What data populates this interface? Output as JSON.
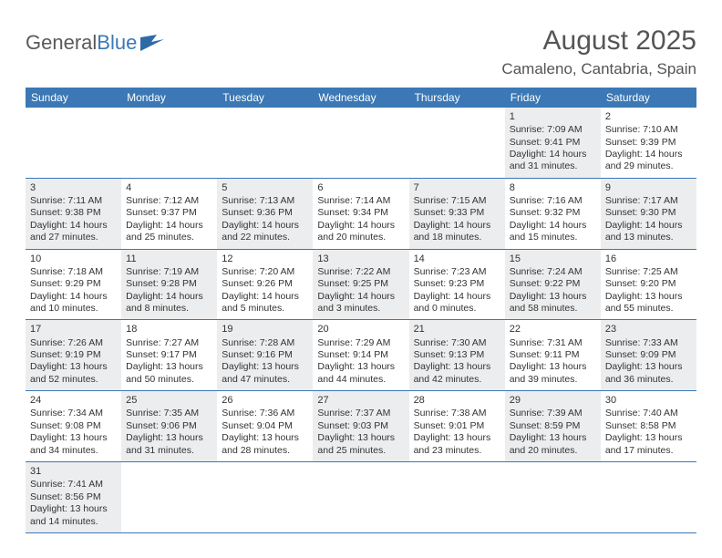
{
  "logo": {
    "text1": "General",
    "text2": "Blue"
  },
  "header": {
    "month_title": "August 2025",
    "location": "Camaleno, Cantabria, Spain"
  },
  "colors": {
    "header_bg": "#3b78b5",
    "shade_bg": "#ecedee",
    "text": "#333333"
  },
  "day_names": [
    "Sunday",
    "Monday",
    "Tuesday",
    "Wednesday",
    "Thursday",
    "Friday",
    "Saturday"
  ],
  "weeks": [
    [
      {
        "empty": true
      },
      {
        "empty": true
      },
      {
        "empty": true
      },
      {
        "empty": true
      },
      {
        "empty": true
      },
      {
        "day": "1",
        "shade": true,
        "sunrise": "Sunrise: 7:09 AM",
        "sunset": "Sunset: 9:41 PM",
        "daylight": "Daylight: 14 hours and 31 minutes."
      },
      {
        "day": "2",
        "sunrise": "Sunrise: 7:10 AM",
        "sunset": "Sunset: 9:39 PM",
        "daylight": "Daylight: 14 hours and 29 minutes."
      }
    ],
    [
      {
        "day": "3",
        "shade": true,
        "sunrise": "Sunrise: 7:11 AM",
        "sunset": "Sunset: 9:38 PM",
        "daylight": "Daylight: 14 hours and 27 minutes."
      },
      {
        "day": "4",
        "sunrise": "Sunrise: 7:12 AM",
        "sunset": "Sunset: 9:37 PM",
        "daylight": "Daylight: 14 hours and 25 minutes."
      },
      {
        "day": "5",
        "shade": true,
        "sunrise": "Sunrise: 7:13 AM",
        "sunset": "Sunset: 9:36 PM",
        "daylight": "Daylight: 14 hours and 22 minutes."
      },
      {
        "day": "6",
        "sunrise": "Sunrise: 7:14 AM",
        "sunset": "Sunset: 9:34 PM",
        "daylight": "Daylight: 14 hours and 20 minutes."
      },
      {
        "day": "7",
        "shade": true,
        "sunrise": "Sunrise: 7:15 AM",
        "sunset": "Sunset: 9:33 PM",
        "daylight": "Daylight: 14 hours and 18 minutes."
      },
      {
        "day": "8",
        "sunrise": "Sunrise: 7:16 AM",
        "sunset": "Sunset: 9:32 PM",
        "daylight": "Daylight: 14 hours and 15 minutes."
      },
      {
        "day": "9",
        "shade": true,
        "sunrise": "Sunrise: 7:17 AM",
        "sunset": "Sunset: 9:30 PM",
        "daylight": "Daylight: 14 hours and 13 minutes."
      }
    ],
    [
      {
        "day": "10",
        "sunrise": "Sunrise: 7:18 AM",
        "sunset": "Sunset: 9:29 PM",
        "daylight": "Daylight: 14 hours and 10 minutes."
      },
      {
        "day": "11",
        "shade": true,
        "sunrise": "Sunrise: 7:19 AM",
        "sunset": "Sunset: 9:28 PM",
        "daylight": "Daylight: 14 hours and 8 minutes."
      },
      {
        "day": "12",
        "sunrise": "Sunrise: 7:20 AM",
        "sunset": "Sunset: 9:26 PM",
        "daylight": "Daylight: 14 hours and 5 minutes."
      },
      {
        "day": "13",
        "shade": true,
        "sunrise": "Sunrise: 7:22 AM",
        "sunset": "Sunset: 9:25 PM",
        "daylight": "Daylight: 14 hours and 3 minutes."
      },
      {
        "day": "14",
        "sunrise": "Sunrise: 7:23 AM",
        "sunset": "Sunset: 9:23 PM",
        "daylight": "Daylight: 14 hours and 0 minutes."
      },
      {
        "day": "15",
        "shade": true,
        "sunrise": "Sunrise: 7:24 AM",
        "sunset": "Sunset: 9:22 PM",
        "daylight": "Daylight: 13 hours and 58 minutes."
      },
      {
        "day": "16",
        "sunrise": "Sunrise: 7:25 AM",
        "sunset": "Sunset: 9:20 PM",
        "daylight": "Daylight: 13 hours and 55 minutes."
      }
    ],
    [
      {
        "day": "17",
        "shade": true,
        "sunrise": "Sunrise: 7:26 AM",
        "sunset": "Sunset: 9:19 PM",
        "daylight": "Daylight: 13 hours and 52 minutes."
      },
      {
        "day": "18",
        "sunrise": "Sunrise: 7:27 AM",
        "sunset": "Sunset: 9:17 PM",
        "daylight": "Daylight: 13 hours and 50 minutes."
      },
      {
        "day": "19",
        "shade": true,
        "sunrise": "Sunrise: 7:28 AM",
        "sunset": "Sunset: 9:16 PM",
        "daylight": "Daylight: 13 hours and 47 minutes."
      },
      {
        "day": "20",
        "sunrise": "Sunrise: 7:29 AM",
        "sunset": "Sunset: 9:14 PM",
        "daylight": "Daylight: 13 hours and 44 minutes."
      },
      {
        "day": "21",
        "shade": true,
        "sunrise": "Sunrise: 7:30 AM",
        "sunset": "Sunset: 9:13 PM",
        "daylight": "Daylight: 13 hours and 42 minutes."
      },
      {
        "day": "22",
        "sunrise": "Sunrise: 7:31 AM",
        "sunset": "Sunset: 9:11 PM",
        "daylight": "Daylight: 13 hours and 39 minutes."
      },
      {
        "day": "23",
        "shade": true,
        "sunrise": "Sunrise: 7:33 AM",
        "sunset": "Sunset: 9:09 PM",
        "daylight": "Daylight: 13 hours and 36 minutes."
      }
    ],
    [
      {
        "day": "24",
        "sunrise": "Sunrise: 7:34 AM",
        "sunset": "Sunset: 9:08 PM",
        "daylight": "Daylight: 13 hours and 34 minutes."
      },
      {
        "day": "25",
        "shade": true,
        "sunrise": "Sunrise: 7:35 AM",
        "sunset": "Sunset: 9:06 PM",
        "daylight": "Daylight: 13 hours and 31 minutes."
      },
      {
        "day": "26",
        "sunrise": "Sunrise: 7:36 AM",
        "sunset": "Sunset: 9:04 PM",
        "daylight": "Daylight: 13 hours and 28 minutes."
      },
      {
        "day": "27",
        "shade": true,
        "sunrise": "Sunrise: 7:37 AM",
        "sunset": "Sunset: 9:03 PM",
        "daylight": "Daylight: 13 hours and 25 minutes."
      },
      {
        "day": "28",
        "sunrise": "Sunrise: 7:38 AM",
        "sunset": "Sunset: 9:01 PM",
        "daylight": "Daylight: 13 hours and 23 minutes."
      },
      {
        "day": "29",
        "shade": true,
        "sunrise": "Sunrise: 7:39 AM",
        "sunset": "Sunset: 8:59 PM",
        "daylight": "Daylight: 13 hours and 20 minutes."
      },
      {
        "day": "30",
        "sunrise": "Sunrise: 7:40 AM",
        "sunset": "Sunset: 8:58 PM",
        "daylight": "Daylight: 13 hours and 17 minutes."
      }
    ],
    [
      {
        "day": "31",
        "shade": true,
        "sunrise": "Sunrise: 7:41 AM",
        "sunset": "Sunset: 8:56 PM",
        "daylight": "Daylight: 13 hours and 14 minutes."
      },
      {
        "empty": true
      },
      {
        "empty": true
      },
      {
        "empty": true
      },
      {
        "empty": true
      },
      {
        "empty": true
      },
      {
        "empty": true
      }
    ]
  ]
}
